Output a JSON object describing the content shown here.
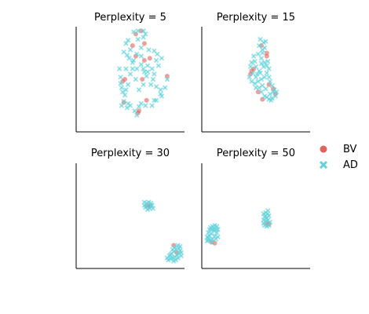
{
  "colors": {
    "BV": "#e0635a",
    "AD": "#5fd3dc",
    "axis": "#000000",
    "background": "#ffffff"
  },
  "legend": {
    "placement": "right",
    "items": [
      {
        "label": "BV",
        "marker": "circle",
        "color": "#e0635a"
      },
      {
        "label": "AD",
        "marker": "cross",
        "color": "#5fd3dc"
      }
    ]
  },
  "chart_data": [
    {
      "type": "scatter",
      "title": "Perplexity = 5",
      "xlim": [
        0,
        100
      ],
      "ylim": [
        0,
        100
      ],
      "grid": false,
      "series": [
        {
          "name": "BV",
          "marker": "circle",
          "points": [
            [
              55,
              93
            ],
            [
              60,
              96
            ],
            [
              63,
              84
            ],
            [
              52,
              82
            ],
            [
              55,
              72
            ],
            [
              63,
              68
            ],
            [
              45,
              50
            ],
            [
              43,
              48
            ],
            [
              61,
              50
            ],
            [
              68,
              70
            ],
            [
              84,
              53
            ],
            [
              65,
              30
            ],
            [
              58,
              20
            ],
            [
              57,
              18
            ],
            [
              44,
              28
            ]
          ]
        },
        {
          "name": "AD",
          "marker": "cross",
          "points": [
            [
              53,
              95
            ],
            [
              57,
              96
            ],
            [
              62,
              96
            ],
            [
              64,
              93
            ],
            [
              48,
              87
            ],
            [
              46,
              84
            ],
            [
              57,
              88
            ],
            [
              62,
              90
            ],
            [
              60,
              80
            ],
            [
              50,
              78
            ],
            [
              44,
              76
            ],
            [
              47,
              73
            ],
            [
              56,
              74
            ],
            [
              60,
              72
            ],
            [
              67,
              78
            ],
            [
              72,
              77
            ],
            [
              75,
              74
            ],
            [
              74,
              68
            ],
            [
              79,
              70
            ],
            [
              70,
              60
            ],
            [
              66,
              57
            ],
            [
              65,
              53
            ],
            [
              72,
              55
            ],
            [
              76,
              63
            ],
            [
              71,
              50
            ],
            [
              69,
              45
            ],
            [
              74,
              43
            ],
            [
              78,
              40
            ],
            [
              79,
              34
            ],
            [
              74,
              30
            ],
            [
              78,
              36
            ],
            [
              82,
              42
            ],
            [
              84,
              50
            ],
            [
              62,
              45
            ],
            [
              58,
              40
            ],
            [
              55,
              50
            ],
            [
              52,
              60
            ],
            [
              50,
              55
            ],
            [
              48,
              45
            ],
            [
              46,
              40
            ],
            [
              42,
              42
            ],
            [
              43,
              38
            ],
            [
              45,
              35
            ],
            [
              44,
              29
            ],
            [
              48,
              27
            ],
            [
              47,
              23
            ],
            [
              50,
              25
            ],
            [
              42,
              25
            ],
            [
              54,
              20
            ],
            [
              56,
              16
            ],
            [
              58,
              24
            ],
            [
              60,
              27
            ],
            [
              64,
              25
            ],
            [
              70,
              25
            ],
            [
              72,
              30
            ],
            [
              41,
              46
            ],
            [
              41,
              52
            ],
            [
              40,
              60
            ],
            [
              46,
              60
            ],
            [
              52,
              66
            ],
            [
              56,
              60
            ],
            [
              60,
              64
            ],
            [
              62,
              60
            ],
            [
              63,
              57
            ],
            [
              66,
              63
            ],
            [
              49,
              70
            ],
            [
              53,
              68
            ]
          ]
        }
      ]
    },
    {
      "type": "scatter",
      "title": "Perplexity = 15",
      "xlim": [
        0,
        100
      ],
      "ylim": [
        0,
        100
      ],
      "grid": false,
      "series": [
        {
          "name": "BV",
          "marker": "circle",
          "points": [
            [
              55,
              82
            ],
            [
              60,
              72
            ],
            [
              48,
              60
            ],
            [
              46,
              58
            ],
            [
              45,
              55
            ],
            [
              52,
              38
            ],
            [
              56,
              31
            ],
            [
              62,
              45
            ],
            [
              66,
              41
            ],
            [
              68,
              36
            ],
            [
              60,
              75
            ]
          ]
        },
        {
          "name": "AD",
          "marker": "cross",
          "points": [
            [
              54,
              88
            ],
            [
              53,
              82
            ],
            [
              56,
              78
            ],
            [
              58,
              80
            ],
            [
              55,
              70
            ],
            [
              52,
              74
            ],
            [
              48,
              72
            ],
            [
              49,
              67
            ],
            [
              46,
              66
            ],
            [
              45,
              62
            ],
            [
              47,
              56
            ],
            [
              44,
              52
            ],
            [
              46,
              48
            ],
            [
              50,
              52
            ],
            [
              52,
              48
            ],
            [
              55,
              50
            ],
            [
              58,
              52
            ],
            [
              60,
              56
            ],
            [
              62,
              60
            ],
            [
              57,
              62
            ],
            [
              53,
              58
            ],
            [
              49,
              46
            ],
            [
              50,
              42
            ],
            [
              53,
              42
            ],
            [
              55,
              38
            ],
            [
              58,
              34
            ],
            [
              60,
              33
            ],
            [
              62,
              31
            ],
            [
              64,
              30
            ],
            [
              65,
              32
            ],
            [
              68,
              34
            ],
            [
              69,
              38
            ],
            [
              67,
              40
            ],
            [
              65,
              44
            ],
            [
              63,
              48
            ],
            [
              62,
              52
            ],
            [
              60,
              63
            ],
            [
              58,
              66
            ],
            [
              61,
              67
            ],
            [
              55,
              65
            ],
            [
              54,
              56
            ],
            [
              56,
              44
            ],
            [
              59,
              41
            ],
            [
              63,
              36
            ],
            [
              66,
              38
            ],
            [
              57,
              85
            ],
            [
              59,
              86
            ],
            [
              56,
              75
            ],
            [
              50,
              62
            ],
            [
              51,
              55
            ]
          ]
        }
      ]
    },
    {
      "type": "scatter",
      "title": "Perplexity = 30",
      "xlim": [
        0,
        100
      ],
      "ylim": [
        0,
        100
      ],
      "grid": false,
      "series": [
        {
          "name": "BV",
          "marker": "circle",
          "points": [
            [
              66,
              60
            ],
            [
              68,
              59
            ],
            [
              90,
              22
            ],
            [
              93,
              15
            ]
          ]
        },
        {
          "name": "AD",
          "marker": "cross",
          "points": [
            [
              63,
              63
            ],
            [
              65,
              62
            ],
            [
              67,
              63
            ],
            [
              69,
              62
            ],
            [
              70,
              60
            ],
            [
              71,
              57
            ],
            [
              68,
              57
            ],
            [
              66,
              56
            ],
            [
              64,
              58
            ],
            [
              63,
              60
            ],
            [
              65,
              59
            ],
            [
              69,
              60
            ],
            [
              91,
              20
            ],
            [
              94,
              22
            ],
            [
              95,
              19
            ],
            [
              96,
              17
            ],
            [
              97,
              15
            ],
            [
              93,
              13
            ],
            [
              91,
              11
            ],
            [
              89,
              10
            ],
            [
              87,
              9
            ],
            [
              85,
              8
            ],
            [
              84,
              10
            ],
            [
              86,
              12
            ],
            [
              88,
              14
            ],
            [
              90,
              16
            ],
            [
              92,
              18
            ],
            [
              95,
              14
            ],
            [
              97,
              12
            ],
            [
              94,
              10
            ],
            [
              96,
              21
            ],
            [
              89,
              18
            ],
            [
              87,
              13
            ],
            [
              92,
              8
            ],
            [
              90,
              7
            ]
          ]
        }
      ]
    },
    {
      "type": "scatter",
      "title": "Perplexity = 50",
      "xlim": [
        0,
        100
      ],
      "ylim": [
        0,
        100
      ],
      "grid": false,
      "series": [
        {
          "name": "BV",
          "marker": "circle",
          "points": [
            [
              9,
              25
            ],
            [
              12,
              24
            ],
            [
              60,
              43
            ],
            [
              62,
              42
            ]
          ]
        },
        {
          "name": "AD",
          "marker": "cross",
          "points": [
            [
              5,
              30
            ],
            [
              6,
              34
            ],
            [
              7,
              37
            ],
            [
              8,
              39
            ],
            [
              10,
              40
            ],
            [
              12,
              41
            ],
            [
              14,
              40
            ],
            [
              15,
              37
            ],
            [
              14,
              34
            ],
            [
              12,
              31
            ],
            [
              10,
              28
            ],
            [
              8,
              27
            ],
            [
              6,
              27
            ],
            [
              5,
              26
            ],
            [
              7,
              31
            ],
            [
              9,
              33
            ],
            [
              11,
              36
            ],
            [
              13,
              37
            ],
            [
              9,
              37
            ],
            [
              11,
              38
            ],
            [
              6,
              29
            ],
            [
              13,
              28
            ],
            [
              15,
              30
            ],
            [
              10,
              25
            ],
            [
              57,
              52
            ],
            [
              59,
              53
            ],
            [
              61,
              52
            ],
            [
              62,
              50
            ],
            [
              60,
              48
            ],
            [
              58,
              49
            ],
            [
              57,
              46
            ],
            [
              59,
              45
            ],
            [
              61,
              46
            ],
            [
              63,
              44
            ],
            [
              62,
              41
            ],
            [
              60,
              40
            ],
            [
              58,
              41
            ],
            [
              57,
              43
            ],
            [
              61,
              55
            ],
            [
              59,
              50
            ]
          ]
        }
      ]
    }
  ]
}
